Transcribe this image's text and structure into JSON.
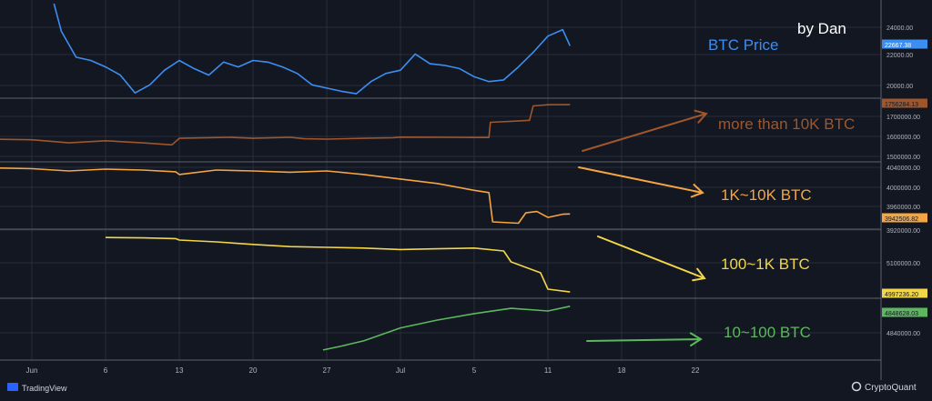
{
  "author_label": "by Dan",
  "branding": {
    "left": "TradingView",
    "right": "CryptoQuant"
  },
  "colors": {
    "background": "#131722",
    "grid": "#2a2e39",
    "separator": "#5d606b",
    "axis_text": "#b2b5be",
    "price": "#3c8ef0",
    "over10k": "#a0562a",
    "k1to10k": "#f5a640",
    "h100to1k": "#f2d64a",
    "b10to100": "#5cb85c"
  },
  "chart_data": {
    "type": "line",
    "x_axis": {
      "tick_labels": [
        "Jun",
        "6",
        "13",
        "20",
        "27",
        "Jul",
        "5",
        "11",
        "18",
        "22"
      ]
    },
    "panels": [
      {
        "id": "price",
        "label": "BTC Price",
        "last_value_label": "22667.38",
        "y_tick_labels": [
          "24000.00",
          "22000.00",
          "20000.00"
        ],
        "ylim": [
          19700,
          25300
        ],
        "x": [
          0.3,
          0.4,
          0.6,
          0.8,
          1.0,
          1.2,
          1.4,
          1.6,
          1.8,
          2.0,
          2.2,
          2.4,
          2.6,
          2.8,
          3.0,
          3.2,
          3.4,
          3.6,
          3.8,
          4.0,
          4.2,
          4.4,
          4.6,
          4.8,
          5.0,
          5.2,
          5.4,
          5.6,
          5.8,
          6.0,
          6.2,
          6.4,
          6.6,
          6.8,
          7.0,
          7.2,
          7.3
        ],
        "values": [
          25300,
          23600,
          22000,
          21800,
          21400,
          20900,
          19800,
          20300,
          21200,
          21800,
          21300,
          20900,
          21700,
          21400,
          21800,
          21700,
          21400,
          21000,
          20300,
          20100,
          19900,
          19750,
          20500,
          21000,
          21200,
          22200,
          21600,
          21500,
          21300,
          20800,
          20500,
          20600,
          21400,
          22300,
          23300,
          23700,
          22700
        ]
      },
      {
        "id": "over10k",
        "label": "more than 10K BTC",
        "last_value_label": "1756284.13",
        "y_tick_labels": [
          "1700000.00",
          "1600000.00",
          "1500000.00"
        ],
        "ylim": [
          1495000,
          1770000
        ],
        "x": [
          -0.6,
          0.0,
          0.5,
          1.0,
          1.5,
          1.9,
          2.0,
          2.7,
          3.0,
          3.5,
          3.7,
          4.0,
          4.5,
          4.9,
          5.0,
          5.6,
          6.0,
          6.2,
          6.22,
          6.5,
          6.75,
          6.8,
          7.0,
          7.3
        ],
        "values": [
          1588000,
          1585000,
          1570000,
          1580000,
          1570000,
          1560000,
          1592000,
          1597000,
          1592000,
          1597000,
          1590000,
          1588000,
          1592000,
          1595000,
          1598000,
          1597000,
          1596000,
          1596000,
          1670000,
          1675000,
          1680000,
          1750000,
          1756000,
          1756284
        ]
      },
      {
        "id": "k1to10k",
        "label": "1K~10K BTC",
        "last_value_label": "3942506.82",
        "y_tick_labels": [
          "4040000.00",
          "4000000.00",
          "3960000.00",
          "3920000.00"
        ],
        "ylim": [
          3917000,
          4050000
        ],
        "x": [
          -0.6,
          0.0,
          0.5,
          1.0,
          1.5,
          1.95,
          2.0,
          2.5,
          3.0,
          3.5,
          4.0,
          4.5,
          5.0,
          5.5,
          6.0,
          6.2,
          6.25,
          6.6,
          6.7,
          6.85,
          7.0,
          7.2,
          7.3
        ],
        "values": [
          4045000,
          4043000,
          4038000,
          4042000,
          4040000,
          4036000,
          4030000,
          4040000,
          4038000,
          4035000,
          4038000,
          4030000,
          4020000,
          4010000,
          3995000,
          3990000,
          3925000,
          3922000,
          3945000,
          3948000,
          3935000,
          3942000,
          3942506
        ]
      },
      {
        "id": "h100to1k",
        "label": "100~1K BTC",
        "last_value_label": "4997236.20",
        "y_tick_labels": [
          "5100000.00"
        ],
        "ylim": [
          4990000,
          5160000
        ],
        "x": [
          1.0,
          1.5,
          1.95,
          2.0,
          2.5,
          3.0,
          3.5,
          4.0,
          4.5,
          5.0,
          5.5,
          6.0,
          6.4,
          6.5,
          6.9,
          7.0,
          7.3
        ],
        "values": [
          5147000,
          5146000,
          5144000,
          5140000,
          5135000,
          5128000,
          5122000,
          5120000,
          5118000,
          5114000,
          5116000,
          5118000,
          5110000,
          5080000,
          5050000,
          5005000,
          4997236
        ]
      },
      {
        "id": "b10to100",
        "label": "10~100 BTC",
        "last_value_label": "4848628.03",
        "y_tick_labels": [
          "4840000.00"
        ],
        "ylim": [
          4810000,
          4852000
        ],
        "x": [
          3.95,
          4.2,
          4.5,
          5.0,
          5.5,
          6.0,
          6.5,
          7.0,
          7.3
        ],
        "values": [
          4815000,
          4818000,
          4822000,
          4832000,
          4838000,
          4843000,
          4847000,
          4845000,
          4848628
        ]
      }
    ]
  }
}
